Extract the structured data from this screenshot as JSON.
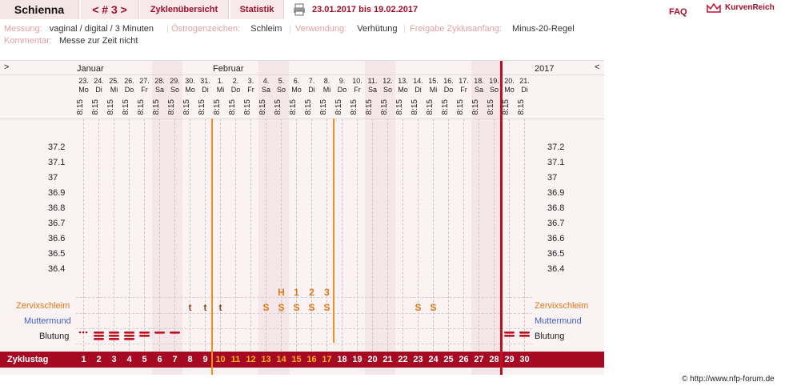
{
  "header": {
    "name": "Schienna",
    "cycle_nav": "< # 3 >",
    "tab_overview": "Zyklenübersicht",
    "tab_stats": "Statistik",
    "date_range": "23.01.2017 bis 19.02.2017",
    "faq": "FAQ",
    "brand": "KurvenReich"
  },
  "meta": {
    "messung_k": "Messung:",
    "messung_v": "vaginal / digital / 3 Minuten",
    "oestro_k": "Östrogenzeichen:",
    "oestro_v": "Schleim",
    "verwendung_k": "Verwendung:",
    "verwendung_v": "Verhütung",
    "freigabe_k": "Freigabe Zyklusanfang:",
    "freigabe_v": "Minus-20-Regel",
    "kommentar_k": "Kommentar:",
    "kommentar_v": "Messe zur Zeit nicht"
  },
  "chart": {
    "left_arrow": ">",
    "right_arrow": "<",
    "month_jan": "Januar",
    "month_feb": "Februar",
    "year": "2017",
    "days": [
      "23.",
      "24.",
      "25.",
      "26.",
      "27.",
      "28.",
      "29.",
      "30.",
      "31.",
      "1.",
      "2.",
      "3.",
      "4.",
      "5.",
      "6.",
      "7.",
      "8.",
      "9.",
      "10.",
      "11.",
      "12.",
      "13.",
      "14.",
      "15.",
      "16.",
      "17.",
      "18.",
      "19.",
      "20.",
      "21."
    ],
    "weekdays": [
      "Mo",
      "Di",
      "Mi",
      "Do",
      "Fr",
      "Sa",
      "So",
      "Mo",
      "Di",
      "Mi",
      "Do",
      "Fr",
      "Sa",
      "So",
      "Mo",
      "Di",
      "Mi",
      "Do",
      "Fr",
      "Sa",
      "So",
      "Mo",
      "Di",
      "Mi",
      "Do",
      "Fr",
      "Sa",
      "So",
      "Mo",
      "Di"
    ],
    "time": "8:15",
    "temp_ticks": [
      "37.2",
      "37.1",
      "37",
      "36.9",
      "36.8",
      "36.7",
      "36.6",
      "36.5",
      "36.4"
    ],
    "row_cervix": "Zervixschleim",
    "row_muttermund": "Muttermund",
    "row_blutung": "Blutung",
    "row_zyklustag": "Zyklustag",
    "cycle_days": [
      "1",
      "2",
      "3",
      "4",
      "5",
      "6",
      "7",
      "8",
      "9",
      "10",
      "11",
      "12",
      "13",
      "14",
      "15",
      "16",
      "17",
      "18",
      "19",
      "20",
      "21",
      "22",
      "23",
      "24",
      "25",
      "26",
      "27",
      "28",
      "29",
      "30"
    ],
    "peak_marks": [
      "H",
      "1",
      "2",
      "3"
    ],
    "mucus": {
      "7": "t",
      "8": "t",
      "9": "t",
      "12": "S",
      "13": "S̲",
      "14": "S",
      "15": "S",
      "16": "S",
      "22": "S",
      "23": "S"
    },
    "copyright": "© http://www.nfp-forum.de"
  },
  "colors": {
    "accent": "#a0102a",
    "orange": "#e07818",
    "cycle_bar": "#a50a22"
  }
}
